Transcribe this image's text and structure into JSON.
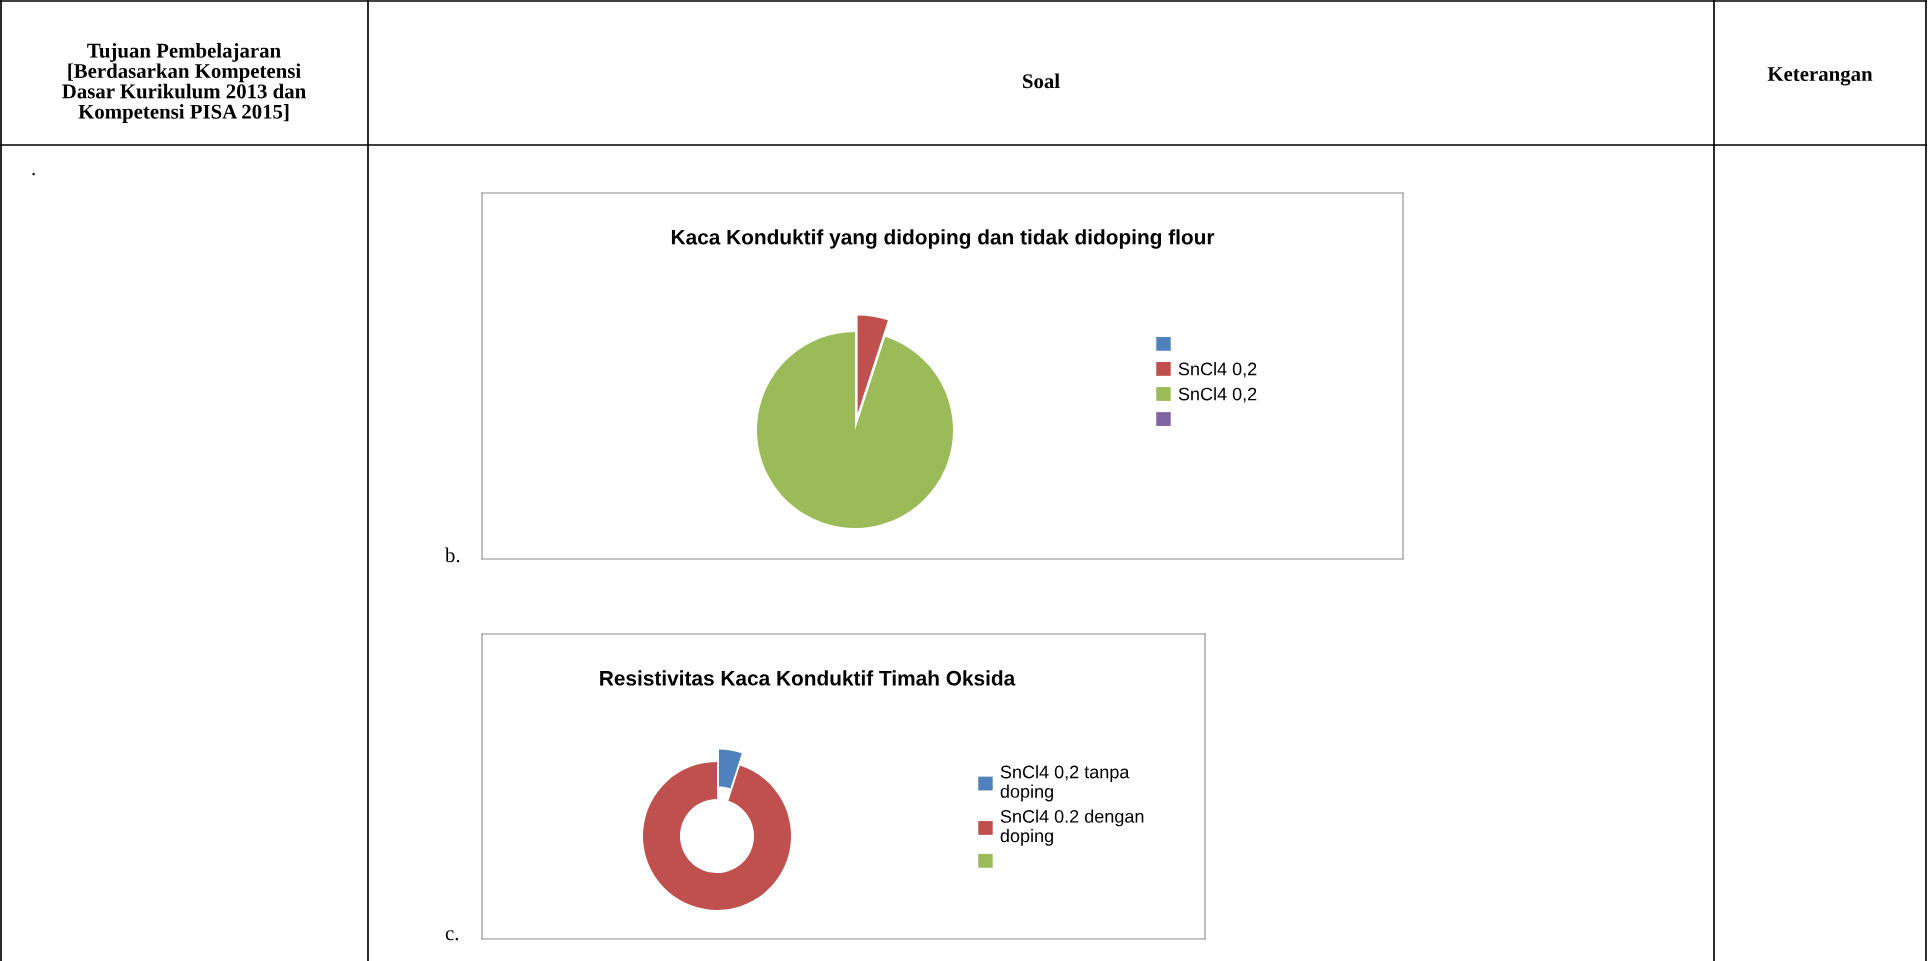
{
  "chart_data": [
    {
      "type": "pie",
      "title": "Kaca Konduktif yang didoping dan tidak didoping flour",
      "categories": [
        null,
        "SnCl4 0,2",
        "SnCl4 0,2",
        null
      ],
      "values": [
        0,
        5,
        95,
        0
      ],
      "colors": [
        "#4f81bd",
        "#c0504d",
        "#9bbb59",
        "#8064a2"
      ],
      "legend": "right",
      "annotations": [
        "Tujuan Pembelajaran\n[Berdasarkan Kompetensi\nDasar Kurikulum 2013 dan\nKompetensi PISA 2015]",
        "Soal",
        "Keterangan",
        ".",
        "b."
      ]
    },
    {
      "type": "donut",
      "title": "Resistivitas Kaca Konduktif Timah Oksida",
      "categories": [
        "SnCl4 0,2 tanpa\ndoping",
        "SnCl4 0.2 dengan\ndoping",
        null
      ],
      "values": [
        5,
        95,
        0
      ],
      "colors": [
        "#4f81bd",
        "#c0504d",
        "#9bbb59"
      ],
      "legend": "right",
      "annotations": [
        "c."
      ]
    }
  ]
}
